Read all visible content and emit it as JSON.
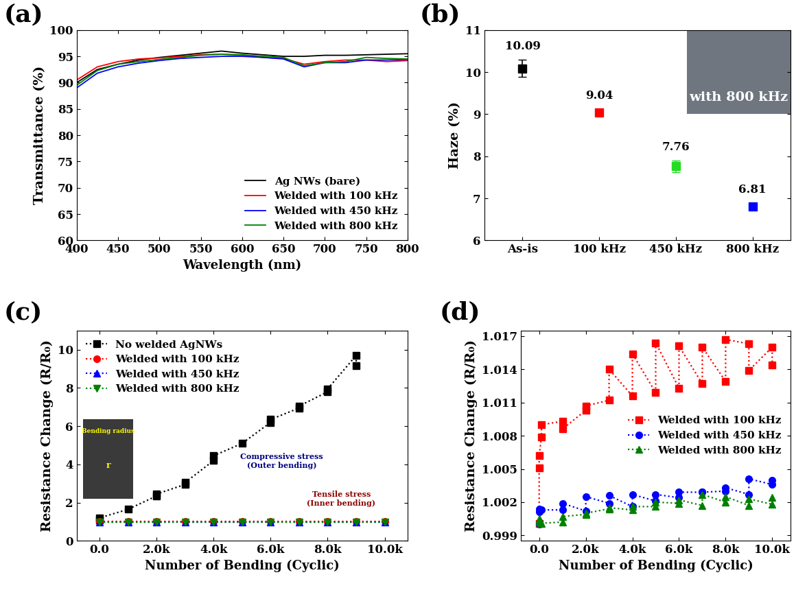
{
  "chart_data": [
    {
      "type": "line",
      "panel_label": "(a)",
      "x_label": "Wavelength (nm)",
      "y_label": "Transmittance (%)",
      "xlim": [
        400,
        800
      ],
      "xticks": [
        400,
        450,
        500,
        550,
        600,
        650,
        700,
        750,
        800
      ],
      "ylim": [
        60,
        100
      ],
      "yticks": [
        60,
        65,
        70,
        75,
        80,
        85,
        90,
        95,
        100
      ],
      "legend": "lower right",
      "series": [
        {
          "name": "Ag NWs (bare)",
          "color": "black",
          "line_style": "solid",
          "x": [
            400,
            425,
            450,
            475,
            500,
            525,
            550,
            575,
            600,
            625,
            650,
            675,
            700,
            725,
            750,
            775,
            800
          ],
          "values": [
            90,
            92.5,
            93.5,
            94.3,
            94.8,
            95.2,
            95.6,
            96,
            95.6,
            95.3,
            95,
            95,
            95.2,
            95.2,
            95.3,
            95.4,
            95.5
          ]
        },
        {
          "name": "Welded with 100 kHz",
          "color": "red",
          "line_style": "solid",
          "x": [
            400,
            425,
            450,
            475,
            500,
            525,
            550,
            575,
            600,
            625,
            650,
            675,
            700,
            725,
            750,
            775,
            800
          ],
          "values": [
            90.5,
            93,
            94,
            94.5,
            94.7,
            95,
            95.3,
            95.4,
            95.2,
            94.8,
            94.6,
            93.5,
            94,
            94.3,
            94.3,
            94,
            94.2
          ]
        },
        {
          "name": "Welded with 450 kHz",
          "color": "blue",
          "line_style": "solid",
          "x": [
            400,
            425,
            450,
            475,
            500,
            525,
            550,
            575,
            600,
            625,
            650,
            675,
            700,
            725,
            750,
            775,
            800
          ],
          "values": [
            89,
            91.8,
            93,
            93.7,
            94.2,
            94.6,
            94.8,
            95,
            95,
            94.8,
            94.5,
            93,
            93.8,
            93.8,
            94.3,
            94.3,
            94.4
          ]
        },
        {
          "name": "Welded with 800 kHz",
          "color": "green",
          "line_style": "solid",
          "x": [
            400,
            425,
            450,
            475,
            500,
            525,
            550,
            575,
            600,
            625,
            650,
            675,
            700,
            725,
            750,
            775,
            800
          ],
          "values": [
            89.5,
            92.3,
            93.5,
            94,
            94.4,
            94.8,
            95.2,
            95.4,
            95.3,
            95,
            94.8,
            93.2,
            93.8,
            94,
            94.8,
            94.6,
            94.5
          ]
        }
      ]
    },
    {
      "type": "scatter",
      "panel_label": "(b)",
      "y_label": "Haze (%)",
      "categories": [
        "As-is",
        "100 kHz",
        "450 kHz",
        "800 kHz"
      ],
      "values": [
        10.09,
        9.04,
        7.76,
        6.81
      ],
      "errors": [
        0.2,
        0.08,
        0.14,
        0.08
      ],
      "colors": [
        "black",
        "red",
        "#22dd22",
        "blue"
      ],
      "marker": "square",
      "data_labels": true,
      "ylim": [
        6,
        11
      ],
      "yticks": [
        6,
        7,
        8,
        9,
        10,
        11
      ],
      "annotations": [
        {
          "text": "with 800 kHz",
          "color": "white"
        }
      ]
    },
    {
      "type": "line",
      "panel_label": "(c)",
      "x_label": "Number of Bending (Cyclic)",
      "y_label": "Resistance Change (R/R₀)",
      "xlim": [
        -800,
        10800
      ],
      "xticks": [
        {
          "value": 0,
          "label": "0.0"
        },
        {
          "value": 2000,
          "label": "2.0k"
        },
        {
          "value": 4000,
          "label": "4.0k"
        },
        {
          "value": 6000,
          "label": "6.0k"
        },
        {
          "value": 8000,
          "label": "8.0k"
        },
        {
          "value": 10000,
          "label": "10.0k"
        }
      ],
      "ylim": [
        0,
        11
      ],
      "yticks": [
        0,
        2,
        4,
        6,
        8,
        10
      ],
      "legend": "upper left",
      "series": [
        {
          "name": "No welded AgNWs",
          "color": "black",
          "marker": "square",
          "line_style": "dotted",
          "x": [
            0,
            0,
            1000,
            2000,
            2000,
            3000,
            3000,
            4000,
            4000,
            5000,
            6000,
            6000,
            7000,
            7000,
            8000,
            8000,
            9000,
            9000
          ],
          "values": [
            1.1,
            1.2,
            1.65,
            2.35,
            2.45,
            2.95,
            3.05,
            4.2,
            4.45,
            5.1,
            6.2,
            6.35,
            6.95,
            7.05,
            7.8,
            7.95,
            9.7,
            9.15
          ]
        },
        {
          "name": "Welded with 100 kHz",
          "color": "red",
          "marker": "circle",
          "line_style": "dotted",
          "x": [
            0,
            1000,
            2000,
            3000,
            4000,
            5000,
            6000,
            7000,
            8000,
            9000,
            10000
          ],
          "values": [
            1.01,
            1.01,
            1.01,
            1.01,
            1.01,
            1.01,
            1.01,
            1.01,
            1.01,
            1.01,
            1.01
          ]
        },
        {
          "name": "Welded with 450 kHz",
          "color": "blue",
          "marker": "triangle_up",
          "line_style": "dotted",
          "x": [
            0,
            1000,
            2000,
            3000,
            4000,
            5000,
            6000,
            7000,
            8000,
            9000,
            10000
          ],
          "values": [
            1.0,
            1.0,
            1.0,
            1.0,
            1.0,
            1.0,
            1.0,
            1.0,
            1.0,
            1.0,
            1.0
          ]
        },
        {
          "name": "Welded with 800 kHz",
          "color": "green",
          "marker": "triangle_down",
          "line_style": "dotted",
          "x": [
            0,
            1000,
            2000,
            3000,
            4000,
            5000,
            6000,
            7000,
            8000,
            9000,
            10000
          ],
          "values": [
            1.0,
            1.0,
            1.0,
            1.0,
            1.0,
            1.0,
            1.0,
            1.0,
            1.0,
            1.0,
            1.0
          ]
        }
      ],
      "annotations": [
        {
          "text": "Bending radius",
          "color": "yellow"
        },
        {
          "text": "r",
          "color": "yellow"
        },
        {
          "text": "Compressive stress\n(Outer bending)",
          "color": "navy"
        },
        {
          "text": "Tensile stress\n(Inner bending)",
          "color": "darkred"
        }
      ]
    },
    {
      "type": "line",
      "panel_label": "(d)",
      "x_label": "Number of Bending (Cyclic)",
      "y_label": "Resistance Change (R/R₀)",
      "xlim": [
        -800,
        10800
      ],
      "xticks": [
        {
          "value": 0,
          "label": "0.0"
        },
        {
          "value": 2000,
          "label": "2.0k"
        },
        {
          "value": 4000,
          "label": "4.0k"
        },
        {
          "value": 6000,
          "label": "6.0k"
        },
        {
          "value": 8000,
          "label": "8.0k"
        },
        {
          "value": 10000,
          "label": "10.0k"
        }
      ],
      "ylim": [
        0.9985,
        1.0175
      ],
      "yticks": [
        0.999,
        1.002,
        1.005,
        1.008,
        1.011,
        1.014,
        1.017
      ],
      "legend": "center right",
      "series": [
        {
          "name": "Welded with 100 kHz",
          "color": "red",
          "marker": "square",
          "line_style": "dotted",
          "x": [
            0,
            0,
            0,
            100,
            100,
            1000,
            1000,
            2000,
            2000,
            3000,
            3000,
            4000,
            4000,
            5000,
            5000,
            6000,
            6000,
            7000,
            7000,
            8000,
            8000,
            9000,
            9000,
            10000,
            10000
          ],
          "values": [
            1.0001,
            1.0051,
            1.0062,
            1.0079,
            1.009,
            1.0093,
            1.0086,
            1.0103,
            1.0107,
            1.0112,
            1.014,
            1.0116,
            1.0154,
            1.0119,
            1.0164,
            1.0123,
            1.0161,
            1.0127,
            1.016,
            1.0129,
            1.0167,
            1.0163,
            1.0139,
            1.016,
            1.0144
          ]
        },
        {
          "name": "Welded with 450 kHz",
          "color": "blue",
          "marker": "circle",
          "line_style": "dotted",
          "x": [
            0,
            0,
            0,
            100,
            1000,
            1000,
            2000,
            2000,
            3000,
            3000,
            4000,
            4000,
            5000,
            5000,
            6000,
            6000,
            7000,
            7000,
            8000,
            8000,
            9000,
            9000,
            10000,
            10000
          ],
          "values": [
            1.0,
            1.0011,
            1.0014,
            1.0013,
            1.0013,
            1.0019,
            1.0012,
            1.0025,
            1.0019,
            1.0026,
            1.0016,
            1.0027,
            1.0021,
            1.0027,
            1.0024,
            1.0029,
            1.0029,
            1.0029,
            1.003,
            1.0033,
            1.0027,
            1.0041,
            1.0036,
            1.004
          ]
        },
        {
          "name": "Welded with 800 kHz",
          "color": "green",
          "marker": "triangle_up",
          "line_style": "dotted",
          "x": [
            0,
            0,
            0,
            100,
            1000,
            1000,
            2000,
            2000,
            3000,
            3000,
            4000,
            4000,
            5000,
            5000,
            6000,
            6000,
            7000,
            7000,
            8000,
            8000,
            9000,
            9000,
            10000,
            10000
          ],
          "values": [
            1.0002,
            1.0004,
            1.0005,
            1.0001,
            1.0002,
            1.0007,
            1.0009,
            1.001,
            1.0014,
            1.0015,
            1.0013,
            1.0016,
            1.0016,
            1.002,
            1.0019,
            1.0022,
            1.0017,
            1.0027,
            1.002,
            1.0025,
            1.0017,
            1.0023,
            1.0018,
            1.0024
          ]
        }
      ]
    }
  ]
}
